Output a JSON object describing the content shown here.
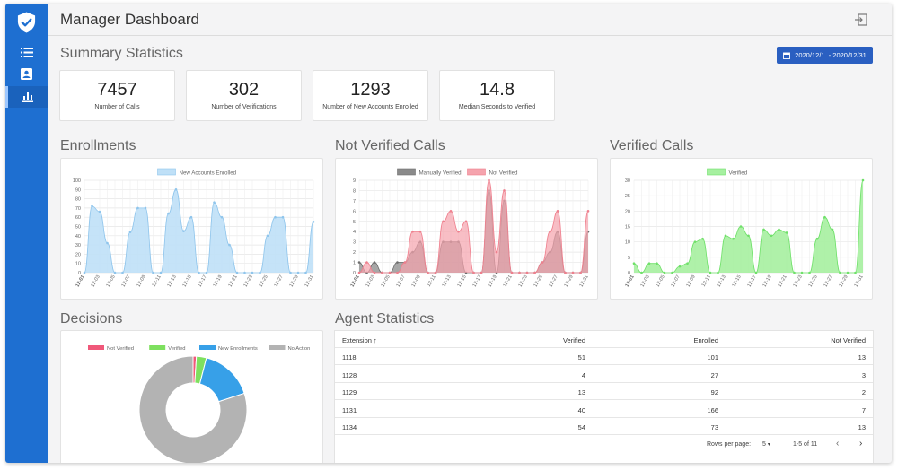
{
  "header": {
    "title": "Manager Dashboard"
  },
  "summary": {
    "title": "Summary Statistics",
    "date_range": "2020/12/1  - 2020/12/31",
    "cards": [
      {
        "value": "7457",
        "label": "Number of Calls"
      },
      {
        "value": "302",
        "label": "Number of Verifications"
      },
      {
        "value": "1293",
        "label": "Number of New Accounts Enrolled"
      },
      {
        "value": "14.8",
        "label": "Median Seconds to Verified"
      }
    ]
  },
  "colors": {
    "sidebar": "#1e6fd1",
    "blue_fill": "#bfe0f7",
    "blue_line": "#8fc5ec",
    "red_fill": "#f5a3ad",
    "gray_fill": "#8a8a8a",
    "green_fill": "#a6f0a0",
    "green_line": "#6fe069",
    "pie_red": "#f0587a",
    "pie_green": "#7ee05f",
    "pie_blue": "#37a0e8",
    "pie_gray": "#b3b3b3"
  },
  "x_ticks": [
    "12-01",
    "12-03",
    "12-05",
    "12-07",
    "12-09",
    "12-11",
    "12-13",
    "12-15",
    "12-17",
    "12-19",
    "12-21",
    "12-23",
    "12-25",
    "12-27",
    "12-29",
    "12-31"
  ],
  "chart_data": [
    {
      "name": "enrollments",
      "title": "Enrollments",
      "type": "area",
      "ylim": [
        0,
        100
      ],
      "yticks": [
        "0",
        "10",
        "20",
        "30",
        "40",
        "50",
        "60",
        "70",
        "80",
        "90",
        "100"
      ],
      "series": [
        {
          "name": "New Accounts Enrolled",
          "values": [
            0,
            72,
            66,
            32,
            0,
            0,
            44,
            70,
            70,
            0,
            0,
            64,
            90,
            45,
            60,
            0,
            0,
            76,
            60,
            30,
            0,
            0,
            0,
            0,
            40,
            60,
            60,
            0,
            0,
            0,
            55
          ]
        }
      ]
    },
    {
      "name": "not-verified-calls",
      "title": "Not Verified Calls",
      "type": "area",
      "ylim": [
        0,
        9
      ],
      "yticks": [
        "0",
        "1",
        "2",
        "3",
        "4",
        "5",
        "6",
        "7",
        "8",
        "9"
      ],
      "series": [
        {
          "name": "Manually Verified",
          "values": [
            1,
            0,
            1,
            0,
            0,
            1,
            1,
            2,
            3,
            0,
            0,
            3,
            3,
            3,
            0,
            0,
            0,
            8,
            0,
            7,
            0,
            0,
            0,
            0,
            1,
            2,
            4,
            0,
            0,
            0,
            4
          ]
        },
        {
          "name": "Not Verified",
          "values": [
            0,
            1,
            0,
            0,
            0,
            0,
            1,
            4,
            4,
            0,
            0,
            5,
            6,
            4,
            5,
            0,
            0,
            9,
            2,
            8,
            0,
            0,
            0,
            0,
            1,
            4,
            6,
            0,
            0,
            0,
            6
          ]
        }
      ]
    },
    {
      "name": "verified-calls",
      "title": "Verified Calls",
      "type": "area",
      "ylim": [
        0,
        30
      ],
      "yticks": [
        "0",
        "5",
        "10",
        "15",
        "20",
        "25",
        "30"
      ],
      "series": [
        {
          "name": "Verified",
          "values": [
            3,
            0,
            3,
            3,
            0,
            0,
            2,
            3,
            10,
            11,
            0,
            0,
            12,
            11,
            15,
            12,
            0,
            14,
            12,
            14,
            13,
            0,
            0,
            0,
            11,
            18,
            14,
            0,
            0,
            0,
            30
          ]
        }
      ]
    },
    {
      "name": "decisions",
      "title": "Decisions",
      "type": "pie",
      "legend": [
        "Not Verified",
        "Verified",
        "New Enrollments",
        "No Action"
      ],
      "values": [
        1,
        3,
        16,
        80
      ]
    }
  ],
  "agent_stats": {
    "title": "Agent Statistics",
    "columns": [
      "Extension",
      "Verified",
      "Enrolled",
      "Not Verified"
    ],
    "sort_arrow": "↑",
    "rows": [
      [
        "1118",
        "51",
        "101",
        "13"
      ],
      [
        "1128",
        "4",
        "27",
        "3"
      ],
      [
        "1129",
        "13",
        "92",
        "2"
      ],
      [
        "1131",
        "40",
        "166",
        "7"
      ],
      [
        "1134",
        "54",
        "73",
        "13"
      ]
    ],
    "rows_per_page_label": "Rows per page:",
    "rows_per_page": "5",
    "pagination": "1-5 of 11"
  }
}
